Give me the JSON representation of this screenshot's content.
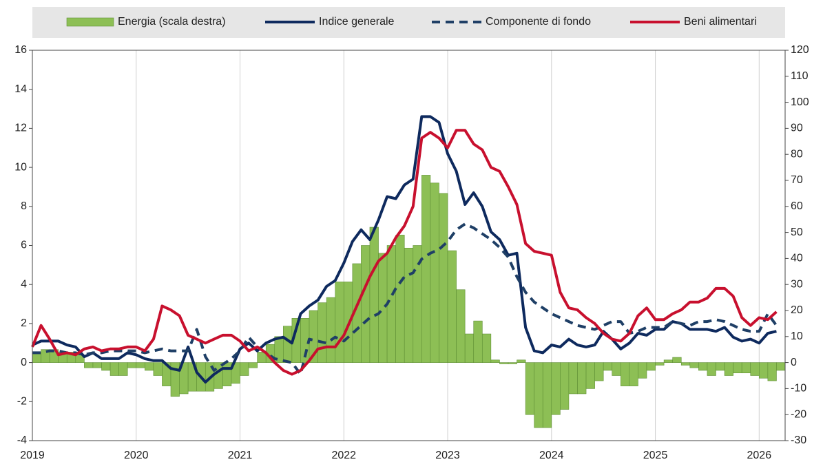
{
  "chart_data": {
    "type": "line",
    "categories": [
      "2019",
      null,
      null,
      null,
      null,
      null,
      null,
      null,
      null,
      null,
      null,
      null,
      "2020",
      null,
      null,
      null,
      null,
      null,
      null,
      null,
      null,
      null,
      null,
      null,
      "2021",
      null,
      null,
      null,
      null,
      null,
      null,
      null,
      null,
      null,
      null,
      null,
      "2022",
      null,
      null,
      null,
      null,
      null,
      null,
      null,
      null,
      null,
      null,
      null,
      "2023",
      null,
      null,
      null,
      null,
      null,
      null,
      null,
      null,
      null,
      null,
      null,
      "2024",
      null,
      null,
      null,
      null,
      null,
      null,
      null,
      null,
      null,
      null,
      null,
      "2025",
      null,
      null,
      null,
      null,
      null,
      null,
      null,
      null,
      null,
      null,
      null,
      "2026",
      null,
      null
    ],
    "series": [
      {
        "name": "Energia (scala destra)",
        "type": "bar",
        "axis": "y2",
        "color": "#8dbf55",
        "values": [
          4,
          5,
          5,
          4,
          4,
          3,
          -2,
          -2,
          -3,
          -5,
          -5,
          -2,
          -2,
          -3,
          -5,
          -9,
          -13,
          -12,
          -11,
          -11,
          -11,
          -10,
          -9,
          -8,
          -5,
          -2,
          4,
          7,
          10,
          14,
          17,
          17,
          20,
          23,
          25,
          31,
          31,
          38,
          45,
          52,
          42,
          45,
          49,
          44,
          45,
          72,
          69,
          65,
          43,
          28,
          11,
          16,
          11,
          1,
          -0.5,
          -0.5,
          1,
          -20,
          -25,
          -25,
          -20,
          -18,
          -12,
          -12,
          -10,
          -7,
          -3,
          -5,
          -9,
          -9,
          -6,
          -3,
          -1,
          1,
          2,
          -1,
          -2,
          -3,
          -5,
          -3,
          -5,
          -4,
          -4,
          -5,
          -6,
          -7,
          -3
        ]
      },
      {
        "name": "Indice generale",
        "type": "line",
        "color": "#0e2a5e",
        "values": [
          0.9,
          1.1,
          1.1,
          1.1,
          0.9,
          0.8,
          0.3,
          0.5,
          0.2,
          0.2,
          0.2,
          0.5,
          0.4,
          0.2,
          0.1,
          0.1,
          -0.3,
          -0.4,
          0.8,
          -0.5,
          -1.0,
          -0.6,
          -0.3,
          -0.3,
          0.7,
          1.0,
          0.6,
          1.0,
          1.2,
          1.3,
          1.0,
          2.5,
          2.9,
          3.2,
          3.9,
          4.2,
          5.1,
          6.2,
          6.8,
          6.3,
          7.3,
          8.5,
          8.4,
          9.1,
          9.4,
          12.6,
          12.6,
          12.3,
          10.7,
          9.8,
          8.1,
          8.7,
          8.0,
          6.7,
          6.3,
          5.5,
          5.6,
          1.8,
          0.6,
          0.5,
          0.9,
          0.8,
          1.2,
          0.9,
          0.8,
          0.9,
          1.6,
          1.2,
          0.7,
          1.0,
          1.5,
          1.4,
          1.7,
          1.7,
          2.1,
          2.0,
          1.7,
          1.7,
          1.7,
          1.6,
          1.8,
          1.3,
          1.1,
          1.2,
          1.0,
          1.5,
          1.6
        ]
      },
      {
        "name": "Componente di fondo",
        "type": "line",
        "dash": true,
        "color": "#1f3f66",
        "values": [
          0.5,
          0.5,
          0.6,
          0.6,
          0.5,
          0.5,
          0.4,
          0.5,
          0.5,
          0.6,
          0.6,
          0.6,
          0.6,
          0.5,
          0.6,
          0.7,
          0.6,
          0.6,
          0.6,
          1.7,
          0.3,
          -0.4,
          -0.1,
          0.2,
          0.6,
          1.3,
          0.8,
          0.5,
          0.2,
          0.1,
          0.0,
          -0.6,
          1.2,
          1.1,
          1.0,
          1.3,
          1.1,
          1.5,
          1.9,
          2.3,
          2.5,
          3.0,
          3.8,
          4.4,
          4.6,
          5.3,
          5.6,
          5.8,
          6.2,
          6.8,
          7.1,
          6.9,
          6.6,
          6.3,
          5.9,
          5.4,
          4.4,
          3.6,
          3.1,
          2.8,
          2.5,
          2.3,
          2.1,
          1.9,
          1.8,
          1.7,
          1.9,
          2.1,
          2.1,
          1.5,
          1.6,
          1.8,
          1.8,
          1.8,
          2.1,
          2.0,
          1.9,
          2.1,
          2.1,
          2.2,
          2.1,
          1.9,
          1.7,
          1.6,
          1.6,
          2.5,
          1.9
        ]
      },
      {
        "name": "Beni alimentari",
        "type": "line",
        "color": "#c8102e",
        "values": [
          0.8,
          1.9,
          1.2,
          0.4,
          0.5,
          0.4,
          0.7,
          0.8,
          0.6,
          0.7,
          0.7,
          0.8,
          0.8,
          0.6,
          1.2,
          2.9,
          2.7,
          2.4,
          1.4,
          1.2,
          1.0,
          1.2,
          1.4,
          1.4,
          1.1,
          0.6,
          0.8,
          0.5,
          0.0,
          -0.4,
          -0.6,
          -0.4,
          0.1,
          0.7,
          0.8,
          0.8,
          1.4,
          2.4,
          3.4,
          4.4,
          5.2,
          5.6,
          6.4,
          7.0,
          8.0,
          11.5,
          11.8,
          11.5,
          11.0,
          11.9,
          11.9,
          11.2,
          10.9,
          10.0,
          9.8,
          9.0,
          8.1,
          6.1,
          5.7,
          5.6,
          5.5,
          3.6,
          2.8,
          2.7,
          2.3,
          2.0,
          1.5,
          1.2,
          1.1,
          1.5,
          2.4,
          2.8,
          2.2,
          2.2,
          2.5,
          2.7,
          3.1,
          3.1,
          3.3,
          3.8,
          3.8,
          3.4,
          2.3,
          1.9,
          2.3,
          2.2,
          2.6
        ]
      }
    ],
    "ylim": [
      -4,
      16
    ],
    "yticks": [
      -4,
      -2,
      0,
      2,
      4,
      6,
      8,
      10,
      12,
      14,
      16
    ],
    "y2lim": [
      -30,
      120
    ],
    "y2ticks": [
      -30,
      -20,
      -10,
      0,
      10,
      20,
      30,
      40,
      50,
      60,
      70,
      80,
      90,
      100,
      110,
      120
    ],
    "grid": true,
    "legend": "top"
  }
}
